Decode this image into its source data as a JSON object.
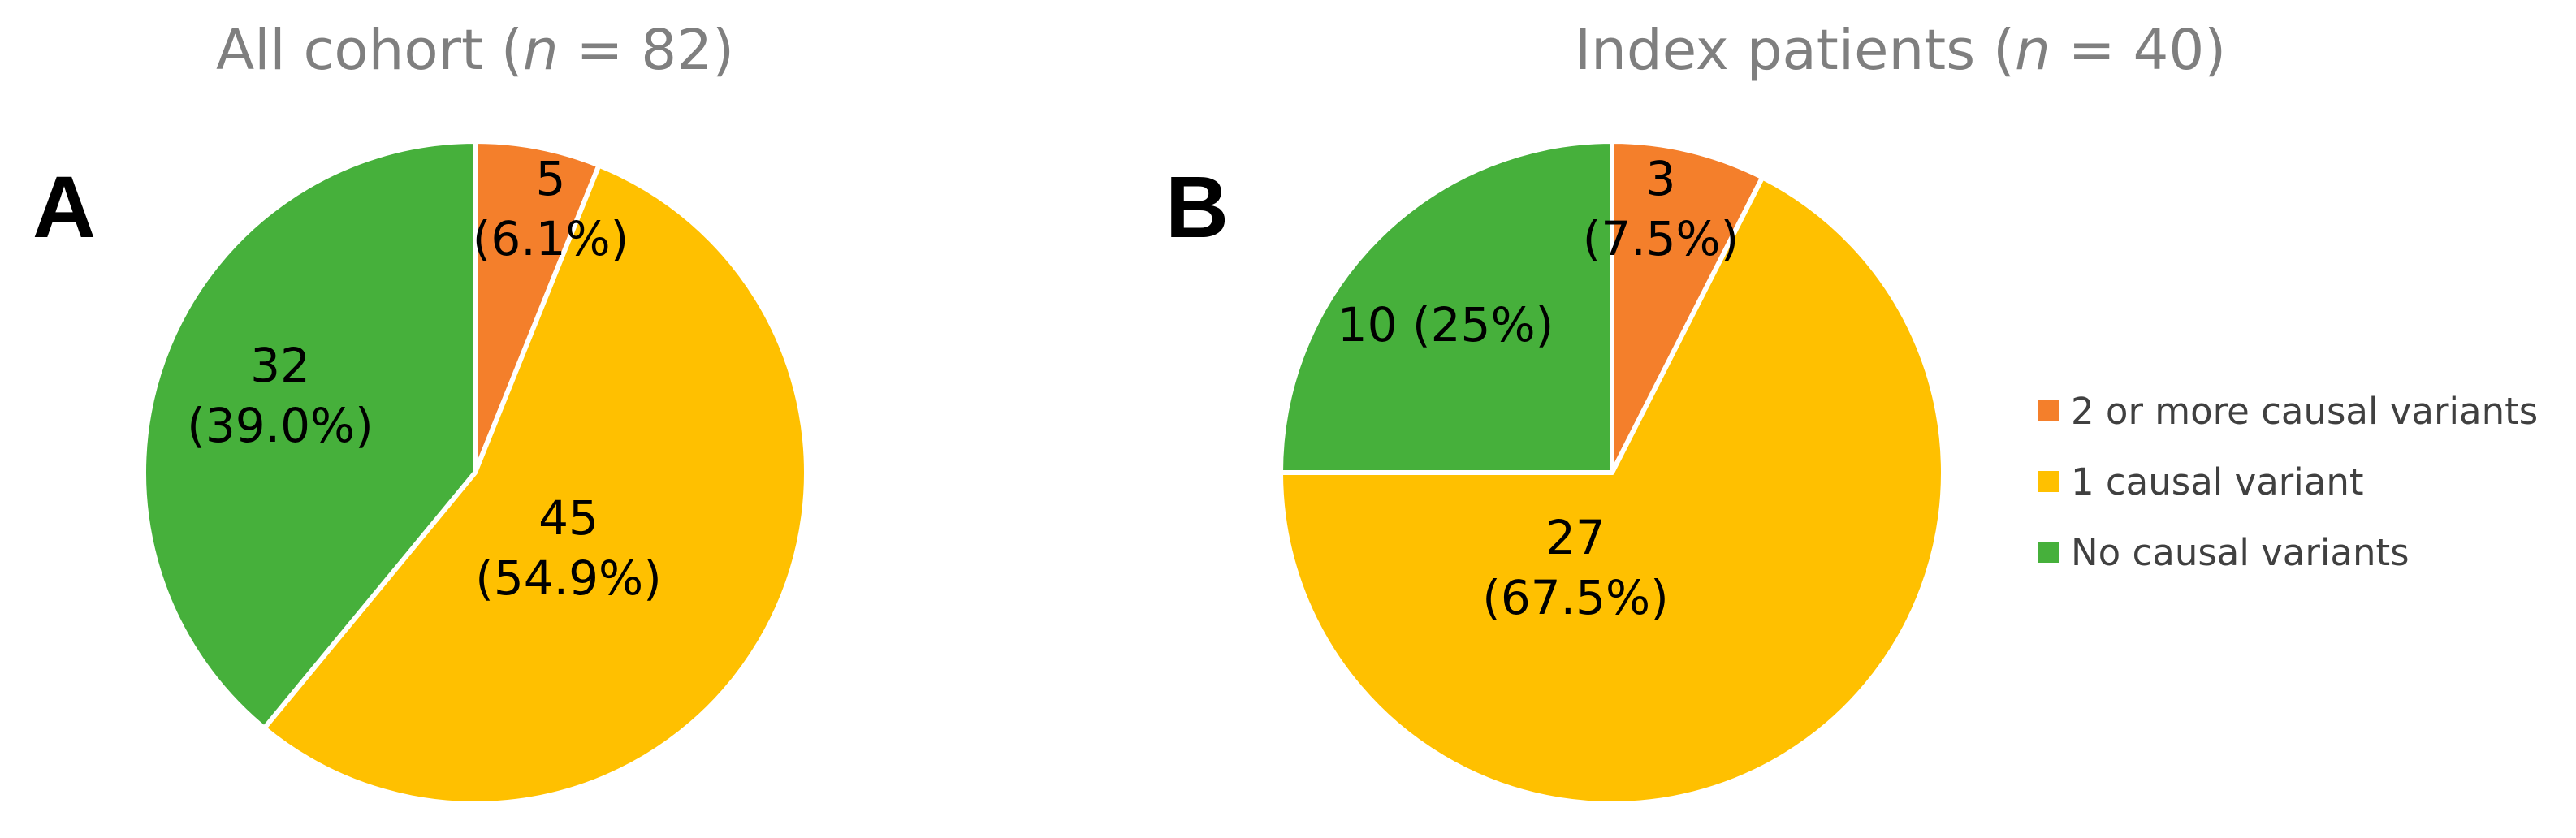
{
  "panels": [
    {
      "letter": "A",
      "title_prefix": "All cohort (",
      "title_n": "n",
      "title_suffix": " = 82)"
    },
    {
      "letter": "B",
      "title_prefix": "Index patients (",
      "title_n": "n",
      "title_suffix": " = 40)"
    }
  ],
  "colors": {
    "two_or_more": "#F47F2B",
    "one": "#FFC000",
    "none": "#46B03B",
    "title": "#7F7F7F",
    "slice_border": "#FFFFFF"
  },
  "chart_data": [
    {
      "type": "pie",
      "title": "All cohort (n = 82)",
      "start_angle": "12 o'clock",
      "direction": "clockwise",
      "slices": [
        {
          "name": "2 or more causal variants",
          "value": 5,
          "percent": 6.1,
          "label_lines": [
            "5",
            "(6.1%)"
          ]
        },
        {
          "name": "1 causal variant",
          "value": 45,
          "percent": 54.9,
          "label_lines": [
            "45",
            "(54.9%)"
          ]
        },
        {
          "name": "No causal variants",
          "value": 32,
          "percent": 39.0,
          "label_lines": [
            "32",
            "(39.0%)"
          ]
        }
      ]
    },
    {
      "type": "pie",
      "title": "Index patients (n = 40)",
      "start_angle": "12 o'clock",
      "direction": "clockwise",
      "slices": [
        {
          "name": "2 or more causal variants",
          "value": 3,
          "percent": 7.5,
          "label_lines": [
            "3",
            "(7.5%)"
          ]
        },
        {
          "name": "1 causal variant",
          "value": 27,
          "percent": 67.5,
          "label_lines": [
            "27",
            "(67.5%)"
          ]
        },
        {
          "name": "No causal variants",
          "value": 10,
          "percent": 25,
          "label_lines": [
            "10 (25%)"
          ]
        }
      ]
    }
  ],
  "legend": {
    "placement": "right",
    "entries": [
      {
        "label": "2 or more causal variants",
        "color": "#F47F2B"
      },
      {
        "label": "1 causal variant",
        "color": "#FFC000"
      },
      {
        "label": "No causal variants",
        "color": "#46B03B"
      }
    ]
  }
}
